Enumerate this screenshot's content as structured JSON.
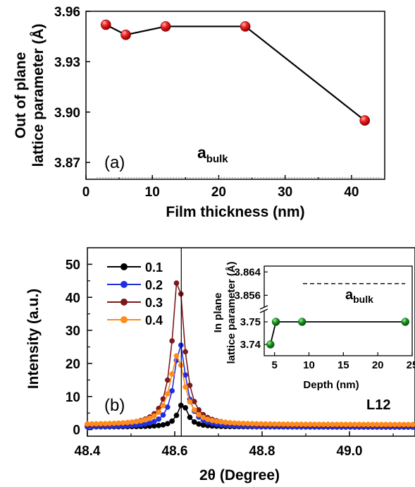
{
  "chart_data": [
    {
      "type": "line",
      "panel_label": "(a)",
      "xlabel": "Film thickness (nm)",
      "ylabel_line1": "Out of plane",
      "ylabel_line2": "lattice parameter (Å)",
      "xlim": [
        0,
        45
      ],
      "ylim": [
        3.86,
        3.96
      ],
      "xticks": [
        0,
        10,
        20,
        30,
        40
      ],
      "yticks": [
        3.87,
        3.9,
        3.93,
        3.96
      ],
      "x": [
        3,
        6,
        12,
        24,
        42
      ],
      "y": [
        3.952,
        3.946,
        3.951,
        3.951,
        3.895
      ],
      "reference_value": 3.861,
      "reference_label": "a",
      "reference_sub": "bulk",
      "marker_color": "#e8141c"
    },
    {
      "type": "line",
      "panel_label": "(b)",
      "xlabel": "2θ (Degree)",
      "ylabel": "Intensity (a.u.)",
      "xlim": [
        48.4,
        49.15
      ],
      "ylim": [
        -2,
        55
      ],
      "xticks": [
        48.4,
        48.6,
        48.8,
        49.0
      ],
      "xtick_labels": [
        "48.4",
        "48.6",
        "48.8",
        "49.0"
      ],
      "yticks": [
        0,
        10,
        20,
        30,
        40,
        50
      ],
      "vline": 48.615,
      "annotation": "L12",
      "series": [
        {
          "name": "0.1",
          "color": "#000000",
          "peak": 7.8,
          "center": 48.618,
          "width": 0.014,
          "base": 0.8
        },
        {
          "name": "0.2",
          "color": "#1f2fe0",
          "peak": 26.0,
          "center": 48.612,
          "width": 0.016,
          "base": 0.7
        },
        {
          "name": "0.3",
          "color": "#7b1a1a",
          "peak": 47.0,
          "center": 48.608,
          "width": 0.016,
          "base": 1.2
        },
        {
          "name": "0.4",
          "color": "#ff8c1a",
          "peak": 22.5,
          "center": 48.606,
          "width": 0.02,
          "base": 1.5
        }
      ]
    },
    {
      "type": "line",
      "inset": true,
      "xlabel": "Depth (nm)",
      "ylabel_line1": "In plane",
      "ylabel_line2": "lattice parameter (Å)",
      "xlim": [
        3.5,
        25
      ],
      "xticks": [
        5,
        10,
        15,
        20,
        25
      ],
      "xtick_labels": [
        "5",
        "10",
        "15",
        "20",
        "25"
      ],
      "yticks_lower": [
        3.74,
        3.75
      ],
      "ytick_labels_lower": [
        "3.74",
        "3.75"
      ],
      "yticks_upper": [
        3.856,
        3.864
      ],
      "ytick_labels_upper": [
        "3.856",
        "3.864"
      ],
      "x": [
        4.4,
        5.2,
        9,
        24
      ],
      "y": [
        3.74,
        3.75,
        3.75,
        3.75
      ],
      "reference_value": 3.86,
      "reference_label": "a",
      "reference_sub": "bulk",
      "marker_color": "#1a8f1a"
    }
  ]
}
